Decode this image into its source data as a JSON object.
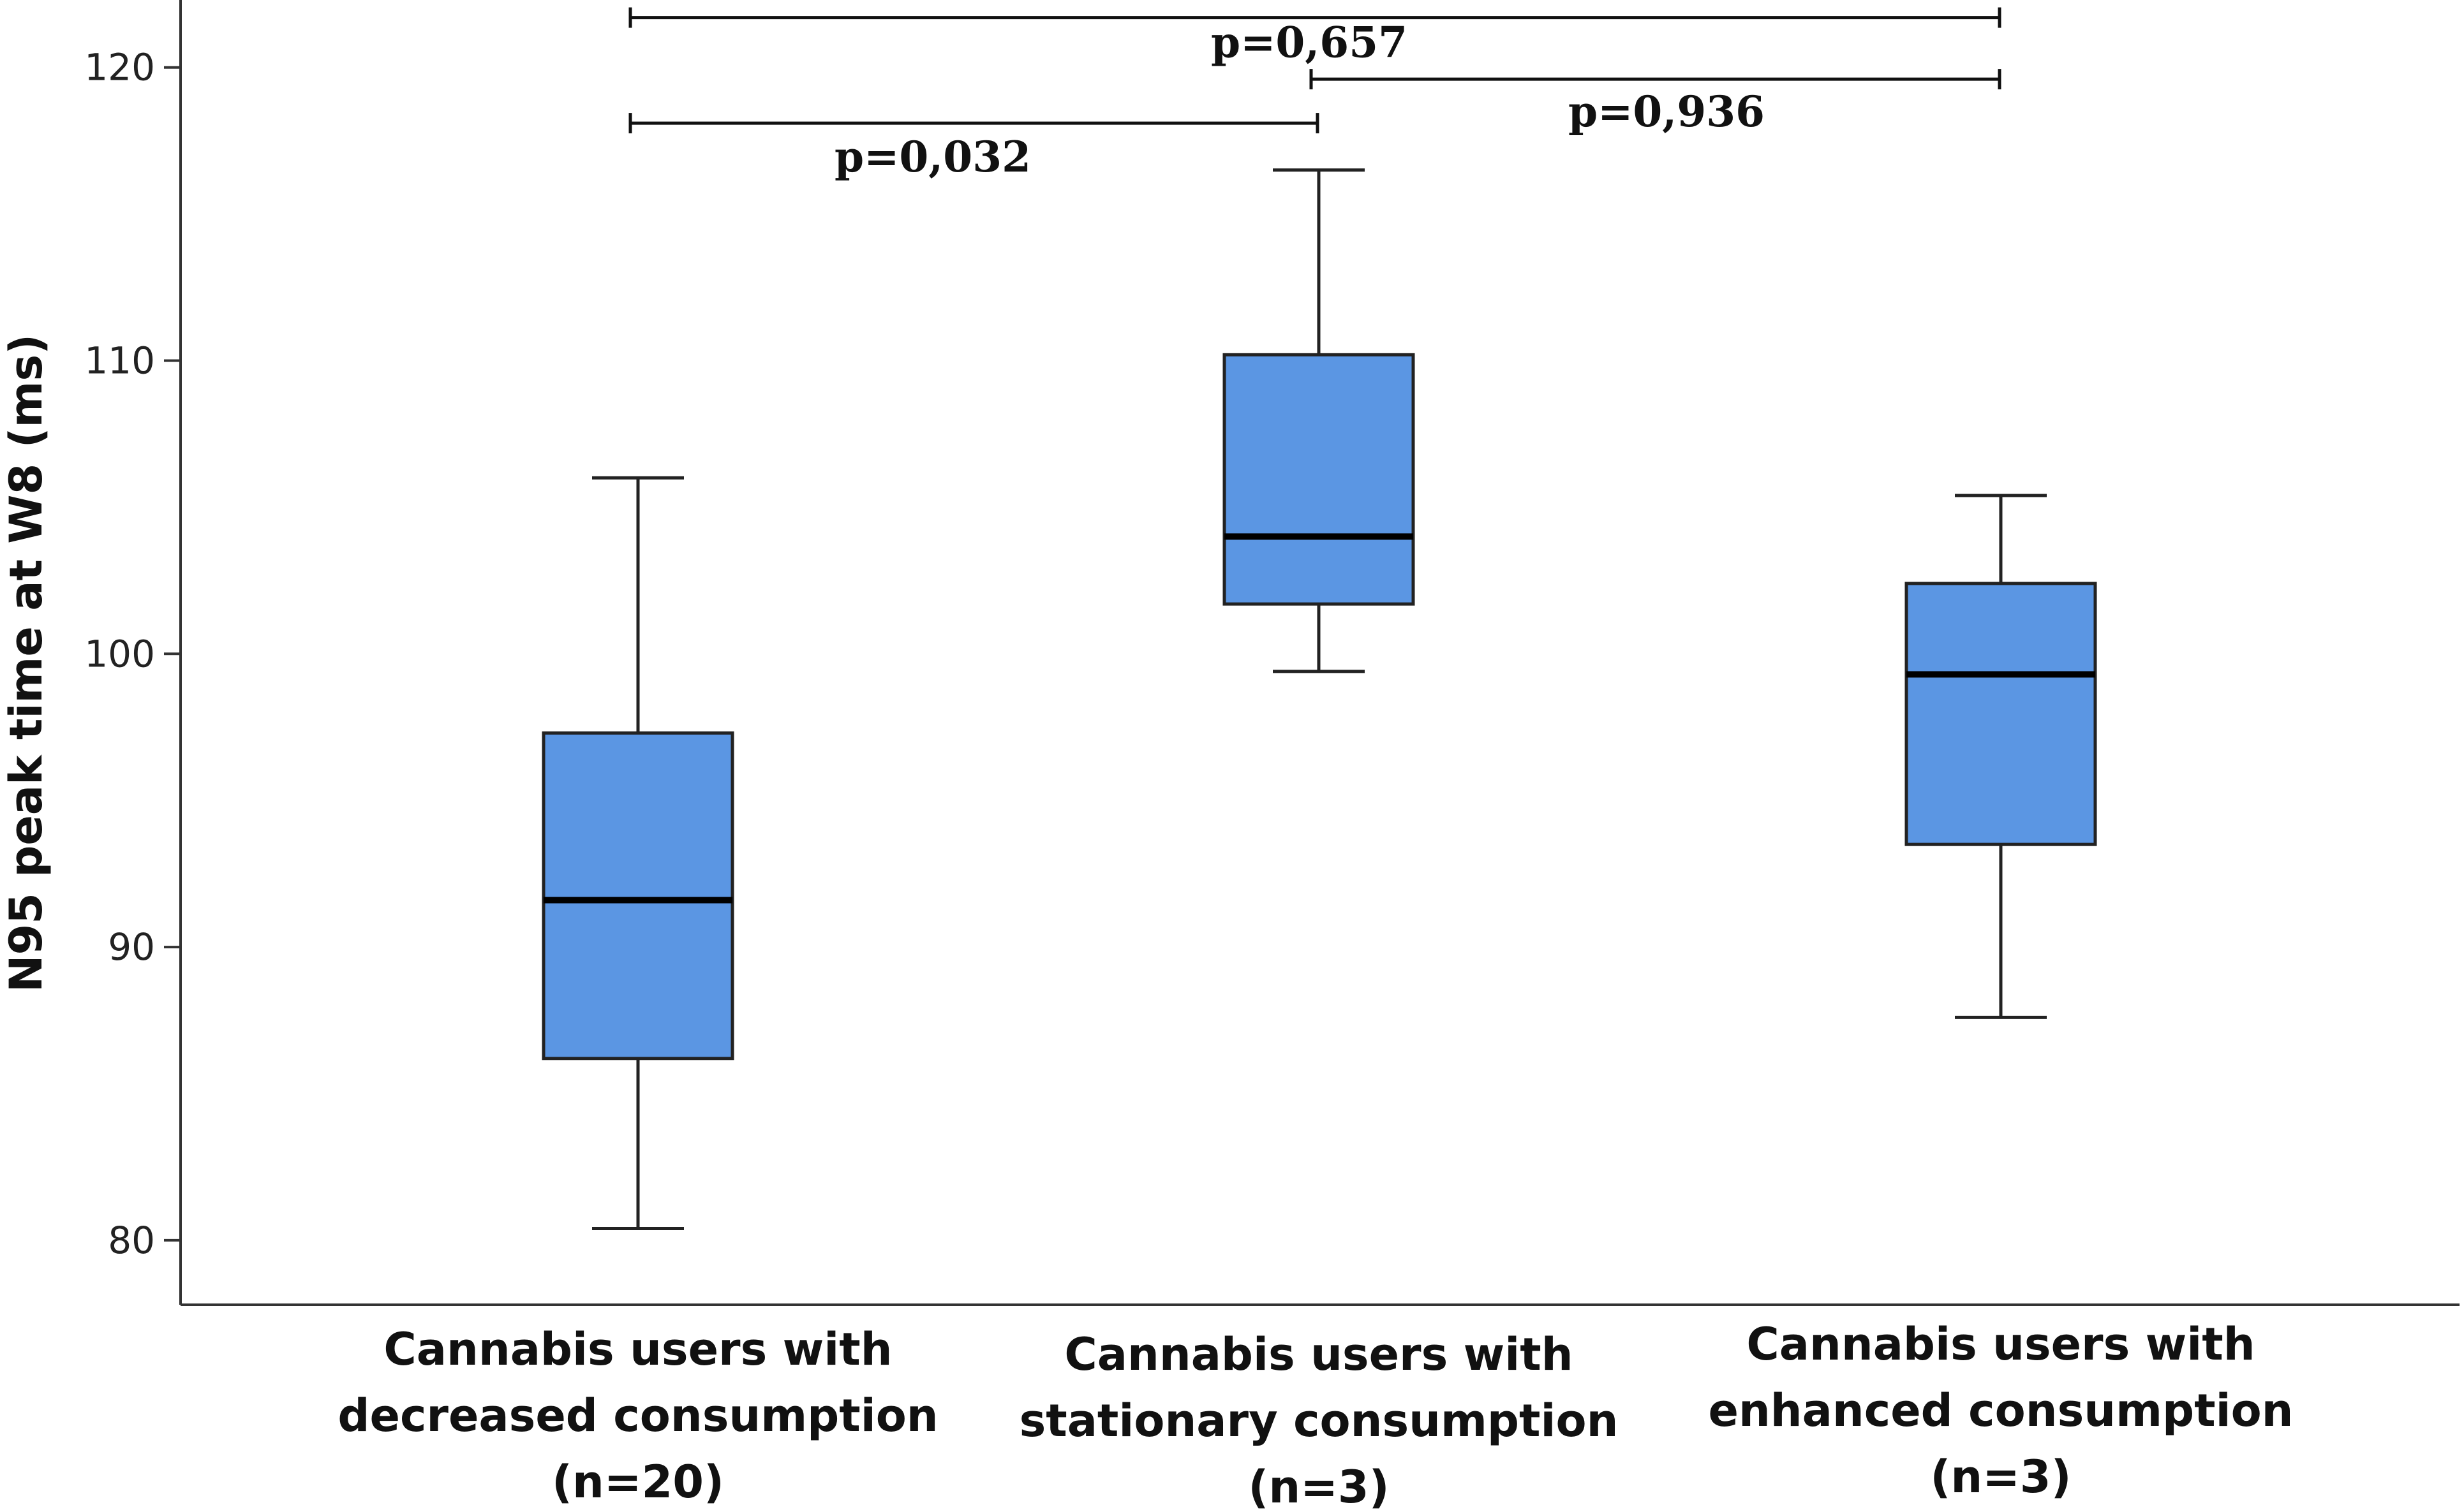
{
  "chart_data": {
    "type": "boxplot",
    "title": "",
    "xlabel": "",
    "ylabel": "N95 peak time at W8 (ms)",
    "ylim": [
      77.8,
      122.3
    ],
    "yticks": [
      80,
      90,
      100,
      110,
      120
    ],
    "grid": false,
    "box_color": "#5B96E3",
    "categories": [
      [
        "Cannabis users with",
        "decreased consumption",
        "(n=20)"
      ],
      [
        "Cannabis users with",
        "stationary consumption",
        "(n=3)"
      ],
      [
        "Cannabis users with",
        "enhanced consumption",
        "(n=3)"
      ]
    ],
    "series": [
      {
        "name": "decreased",
        "min": 80.4,
        "q1": 86.2,
        "median": 91.6,
        "q3": 97.3,
        "max": 106.0
      },
      {
        "name": "stationary",
        "min": 99.4,
        "q1": 101.7,
        "median": 104.0,
        "q3": 110.2,
        "max": 116.5
      },
      {
        "name": "enhanced",
        "min": 87.6,
        "q1": 93.5,
        "median": 99.3,
        "q3": 102.4,
        "max": 105.4
      }
    ],
    "comparisons": [
      {
        "from": 0,
        "to": 2,
        "y": 121.7,
        "label": "p=0,657"
      },
      {
        "from": 1,
        "to": 2,
        "y": 119.6,
        "label": "p=0,936"
      },
      {
        "from": 0,
        "to": 1,
        "y": 118.1,
        "label": "p=0,032"
      }
    ]
  }
}
